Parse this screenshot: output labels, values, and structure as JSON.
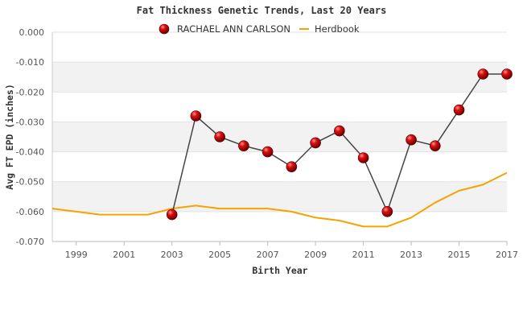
{
  "chart_data": {
    "type": "line",
    "title": "Fat Thickness Genetic Trends, Last 20 Years",
    "xlabel": "Birth Year",
    "ylabel": "Avg FT EPD (inches)",
    "xlim": [
      1998,
      2017
    ],
    "ylim": [
      -0.07,
      0.0
    ],
    "x_ticks": [
      "1999",
      "2001",
      "2003",
      "2005",
      "2007",
      "2009",
      "2011",
      "2013",
      "2015",
      "2017"
    ],
    "y_ticks": [
      "0.000",
      "-0.010",
      "-0.020",
      "-0.030",
      "-0.040",
      "-0.050",
      "-0.060",
      "-0.070"
    ],
    "grid": "alternating horizontal bands",
    "legend_position": "top-center",
    "series": [
      {
        "name": "RACHAEL ANN CARLSON",
        "color": "#cc0000",
        "line_color": "#444444",
        "marker": "sphere",
        "x": [
          2003,
          2004,
          2005,
          2006,
          2007,
          2008,
          2009,
          2010,
          2011,
          2012,
          2013,
          2014,
          2015,
          2016,
          2017
        ],
        "y": [
          -0.061,
          -0.028,
          -0.035,
          -0.038,
          -0.04,
          -0.045,
          -0.037,
          -0.033,
          -0.042,
          -0.06,
          -0.036,
          -0.038,
          -0.026,
          -0.014,
          -0.014
        ]
      },
      {
        "name": "Herdbook",
        "color": "#f5a300",
        "marker": "none",
        "x": [
          1998,
          1999,
          2000,
          2001,
          2002,
          2003,
          2004,
          2005,
          2006,
          2007,
          2008,
          2009,
          2010,
          2011,
          2012,
          2013,
          2014,
          2015,
          2016,
          2017
        ],
        "y": [
          -0.059,
          -0.06,
          -0.061,
          -0.061,
          -0.061,
          -0.059,
          -0.058,
          -0.059,
          -0.059,
          -0.059,
          -0.06,
          -0.062,
          -0.063,
          -0.065,
          -0.065,
          -0.062,
          -0.057,
          -0.053,
          -0.051,
          -0.047
        ]
      }
    ]
  }
}
